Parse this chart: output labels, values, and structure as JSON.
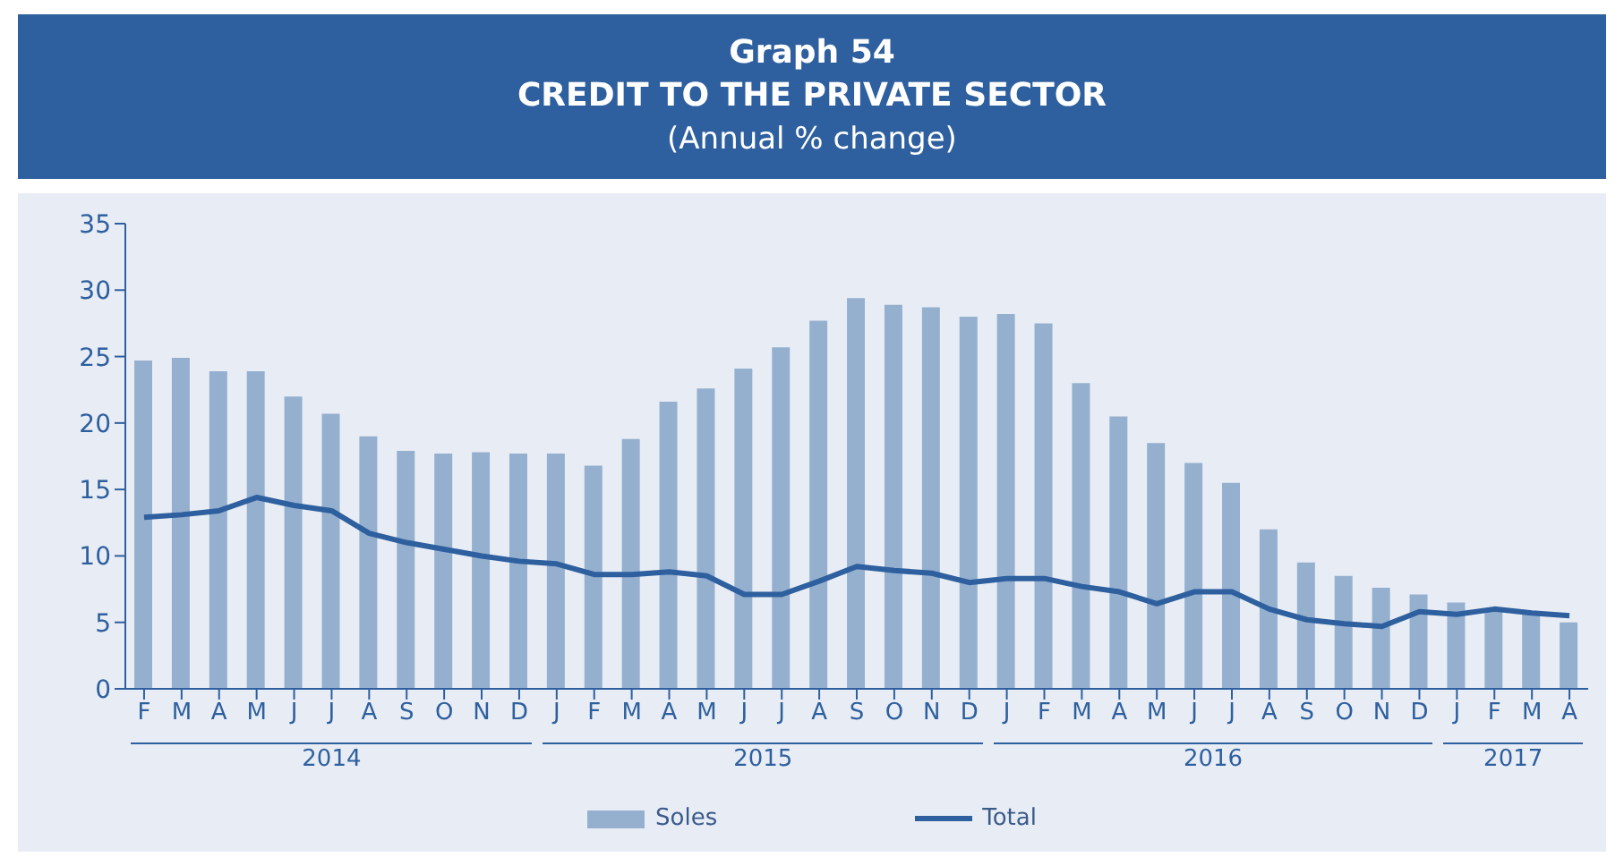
{
  "chart_data": {
    "type": "bar",
    "title": "Graph 54\nCREDIT TO THE PRIVATE SECTOR",
    "subtitle": "(Annual % change)",
    "categories": [
      "F",
      "M",
      "A",
      "M",
      "J",
      "J",
      "A",
      "S",
      "O",
      "N",
      "D",
      "J",
      "F",
      "M",
      "A",
      "M",
      "J",
      "J",
      "A",
      "S",
      "O",
      "N",
      "D",
      "J",
      "F",
      "M",
      "A",
      "M",
      "J",
      "J",
      "A",
      "S",
      "O",
      "N",
      "D",
      "J",
      "F",
      "M",
      "A"
    ],
    "annotations": [
      "2014",
      "2015",
      "2016",
      "2017"
    ],
    "series": [
      {
        "name": "Soles",
        "color": "#95b0cf",
        "values": [
          24.7,
          24.9,
          23.9,
          23.9,
          22.0,
          20.7,
          19.0,
          17.9,
          17.7,
          17.8,
          17.7,
          17.7,
          16.8,
          18.8,
          21.6,
          22.6,
          24.1,
          25.7,
          27.7,
          29.4,
          28.9,
          28.7,
          28.0,
          28.2,
          27.5,
          23.0,
          20.5,
          18.5,
          17.0,
          15.5,
          12.0,
          9.5,
          8.5,
          7.6,
          7.1,
          6.5,
          6.0,
          5.7,
          5.0
        ]
      },
      {
        "name": "Total",
        "type": "line",
        "color": "#2e5f9e",
        "values": [
          12.9,
          13.1,
          13.4,
          14.4,
          13.8,
          13.4,
          11.7,
          11.0,
          10.5,
          10.0,
          9.6,
          9.4,
          8.6,
          8.6,
          8.8,
          8.5,
          7.1,
          7.1,
          8.1,
          9.2,
          8.9,
          8.7,
          8.0,
          8.3,
          8.3,
          7.7,
          7.3,
          6.4,
          7.3,
          7.3,
          6.0,
          5.2,
          4.9,
          4.7,
          5.8,
          5.6,
          6.0,
          5.7,
          5.5
        ]
      }
    ],
    "ylim": [
      0,
      35
    ],
    "yticks": [
      0,
      5,
      10,
      15,
      20,
      25,
      30,
      35
    ],
    "legend": "bottom"
  }
}
